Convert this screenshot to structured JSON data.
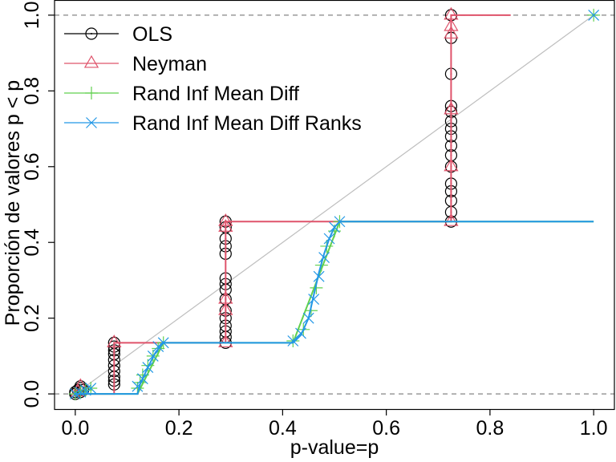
{
  "chart_data": {
    "type": "line",
    "title": "",
    "xlabel": "p-value=p",
    "ylabel": "Proporción de valores p < p",
    "xlim": [
      -0.04,
      1.04
    ],
    "ylim": [
      -0.04,
      1.04
    ],
    "x_ticks": [
      "0.0",
      "0.2",
      "0.4",
      "0.6",
      "0.8",
      "1.0"
    ],
    "x_tick_values": [
      0,
      0.2,
      0.4,
      0.6,
      0.8,
      1.0
    ],
    "y_ticks": [
      "0.0",
      "0.2",
      "0.4",
      "0.6",
      "0.8",
      "1.0"
    ],
    "y_tick_values": [
      0,
      0.2,
      0.4,
      0.6,
      0.8,
      1.0
    ],
    "reference_lines": {
      "horizontal_dashed": [
        0,
        1
      ],
      "diagonal": [
        [
          0,
          0
        ],
        [
          1,
          1
        ]
      ]
    },
    "colors": {
      "diagonal": "#bebebe",
      "reference": "#9a9a9a",
      "axis": "#000000"
    },
    "legend": {
      "position": "top-left",
      "entries": [
        {
          "label": "OLS",
          "color": "#000000",
          "marker": "circle"
        },
        {
          "label": "Neyman",
          "color": "#df536b",
          "marker": "triangle"
        },
        {
          "label": "Rand Inf Mean Diff",
          "color": "#61d04f",
          "marker": "plus"
        },
        {
          "label": "Rand Inf Mean Diff Ranks",
          "color": "#2297e6",
          "marker": "cross"
        }
      ]
    },
    "series": [
      {
        "name": "OLS",
        "color": "#000000",
        "marker": "circle",
        "step_line": [],
        "points": [
          [
            0.0,
            0.0
          ],
          [
            0.0,
            0.005
          ],
          [
            0.005,
            0.01
          ],
          [
            0.01,
            0.015
          ],
          [
            0.01,
            0.02
          ],
          [
            0.01,
            0.005
          ],
          [
            0.015,
            0.01
          ],
          [
            0.075,
            0.025
          ],
          [
            0.075,
            0.035
          ],
          [
            0.075,
            0.045
          ],
          [
            0.075,
            0.06
          ],
          [
            0.075,
            0.075
          ],
          [
            0.075,
            0.09
          ],
          [
            0.075,
            0.105
          ],
          [
            0.075,
            0.115
          ],
          [
            0.075,
            0.125
          ],
          [
            0.075,
            0.135
          ],
          [
            0.29,
            0.135
          ],
          [
            0.29,
            0.15
          ],
          [
            0.29,
            0.165
          ],
          [
            0.29,
            0.18
          ],
          [
            0.29,
            0.2
          ],
          [
            0.29,
            0.22
          ],
          [
            0.29,
            0.25
          ],
          [
            0.29,
            0.275
          ],
          [
            0.29,
            0.29
          ],
          [
            0.29,
            0.305
          ],
          [
            0.29,
            0.37
          ],
          [
            0.29,
            0.39
          ],
          [
            0.29,
            0.41
          ],
          [
            0.29,
            0.44
          ],
          [
            0.29,
            0.455
          ],
          [
            0.725,
            0.455
          ],
          [
            0.725,
            0.48
          ],
          [
            0.725,
            0.51
          ],
          [
            0.725,
            0.535
          ],
          [
            0.725,
            0.555
          ],
          [
            0.725,
            0.6
          ],
          [
            0.725,
            0.63
          ],
          [
            0.725,
            0.655
          ],
          [
            0.725,
            0.68
          ],
          [
            0.725,
            0.7
          ],
          [
            0.725,
            0.72
          ],
          [
            0.725,
            0.745
          ],
          [
            0.725,
            0.76
          ],
          [
            0.725,
            0.845
          ],
          [
            0.725,
            0.94
          ],
          [
            0.725,
            1.0
          ]
        ]
      },
      {
        "name": "Neyman",
        "color": "#df536b",
        "marker": "triangle",
        "step_line": [
          [
            0.0,
            0.0
          ],
          [
            0.075,
            0.0
          ],
          [
            0.075,
            0.135
          ],
          [
            0.29,
            0.135
          ],
          [
            0.29,
            0.455
          ],
          [
            0.725,
            0.455
          ],
          [
            0.725,
            1.0
          ],
          [
            0.84,
            1.0
          ]
        ],
        "points": [
          [
            0.005,
            0.005
          ],
          [
            0.01,
            0.02
          ],
          [
            0.075,
            0.135
          ],
          [
            0.29,
            0.135
          ],
          [
            0.29,
            0.22
          ],
          [
            0.29,
            0.25
          ],
          [
            0.29,
            0.44
          ],
          [
            0.29,
            0.455
          ],
          [
            0.725,
            0.455
          ],
          [
            0.725,
            0.6
          ],
          [
            0.725,
            0.75
          ],
          [
            0.725,
            0.95
          ],
          [
            0.725,
            0.97
          ],
          [
            0.725,
            1.0
          ]
        ]
      },
      {
        "name": "Rand Inf Mean Diff",
        "color": "#61d04f",
        "marker": "plus",
        "step_line": [
          [
            0.0,
            0.0
          ],
          [
            0.12,
            0.0
          ],
          [
            0.17,
            0.135
          ],
          [
            0.42,
            0.135
          ],
          [
            0.51,
            0.455
          ],
          [
            1.0,
            0.455
          ]
        ],
        "points": [
          [
            0.0,
            0.0
          ],
          [
            0.01,
            0.005
          ],
          [
            0.02,
            0.01
          ],
          [
            0.03,
            0.015
          ],
          [
            0.12,
            0.015
          ],
          [
            0.125,
            0.03
          ],
          [
            0.13,
            0.05
          ],
          [
            0.14,
            0.075
          ],
          [
            0.15,
            0.1
          ],
          [
            0.16,
            0.12
          ],
          [
            0.17,
            0.135
          ],
          [
            0.42,
            0.14
          ],
          [
            0.44,
            0.17
          ],
          [
            0.455,
            0.22
          ],
          [
            0.465,
            0.28
          ],
          [
            0.475,
            0.34
          ],
          [
            0.485,
            0.39
          ],
          [
            0.5,
            0.43
          ],
          [
            0.51,
            0.455
          ],
          [
            1.0,
            1.0
          ]
        ]
      },
      {
        "name": "Rand Inf Mean Diff Ranks",
        "color": "#2297e6",
        "marker": "cross",
        "step_line": [
          [
            0.0,
            0.0
          ],
          [
            0.12,
            0.0
          ],
          [
            0.125,
            0.025
          ],
          [
            0.14,
            0.07
          ],
          [
            0.155,
            0.11
          ],
          [
            0.17,
            0.135
          ],
          [
            0.42,
            0.135
          ],
          [
            0.435,
            0.155
          ],
          [
            0.45,
            0.2
          ],
          [
            0.46,
            0.26
          ],
          [
            0.47,
            0.32
          ],
          [
            0.48,
            0.37
          ],
          [
            0.49,
            0.41
          ],
          [
            0.5,
            0.44
          ],
          [
            0.51,
            0.455
          ],
          [
            1.0,
            0.455
          ]
        ],
        "points": [
          [
            0.0,
            0.0
          ],
          [
            0.01,
            0.005
          ],
          [
            0.02,
            0.01
          ],
          [
            0.03,
            0.015
          ],
          [
            0.12,
            0.02
          ],
          [
            0.13,
            0.04
          ],
          [
            0.14,
            0.07
          ],
          [
            0.15,
            0.1
          ],
          [
            0.16,
            0.125
          ],
          [
            0.17,
            0.135
          ],
          [
            0.42,
            0.14
          ],
          [
            0.435,
            0.16
          ],
          [
            0.45,
            0.2
          ],
          [
            0.46,
            0.25
          ],
          [
            0.47,
            0.31
          ],
          [
            0.48,
            0.36
          ],
          [
            0.49,
            0.41
          ],
          [
            0.5,
            0.44
          ],
          [
            0.51,
            0.455
          ],
          [
            1.0,
            1.0
          ]
        ]
      }
    ]
  }
}
